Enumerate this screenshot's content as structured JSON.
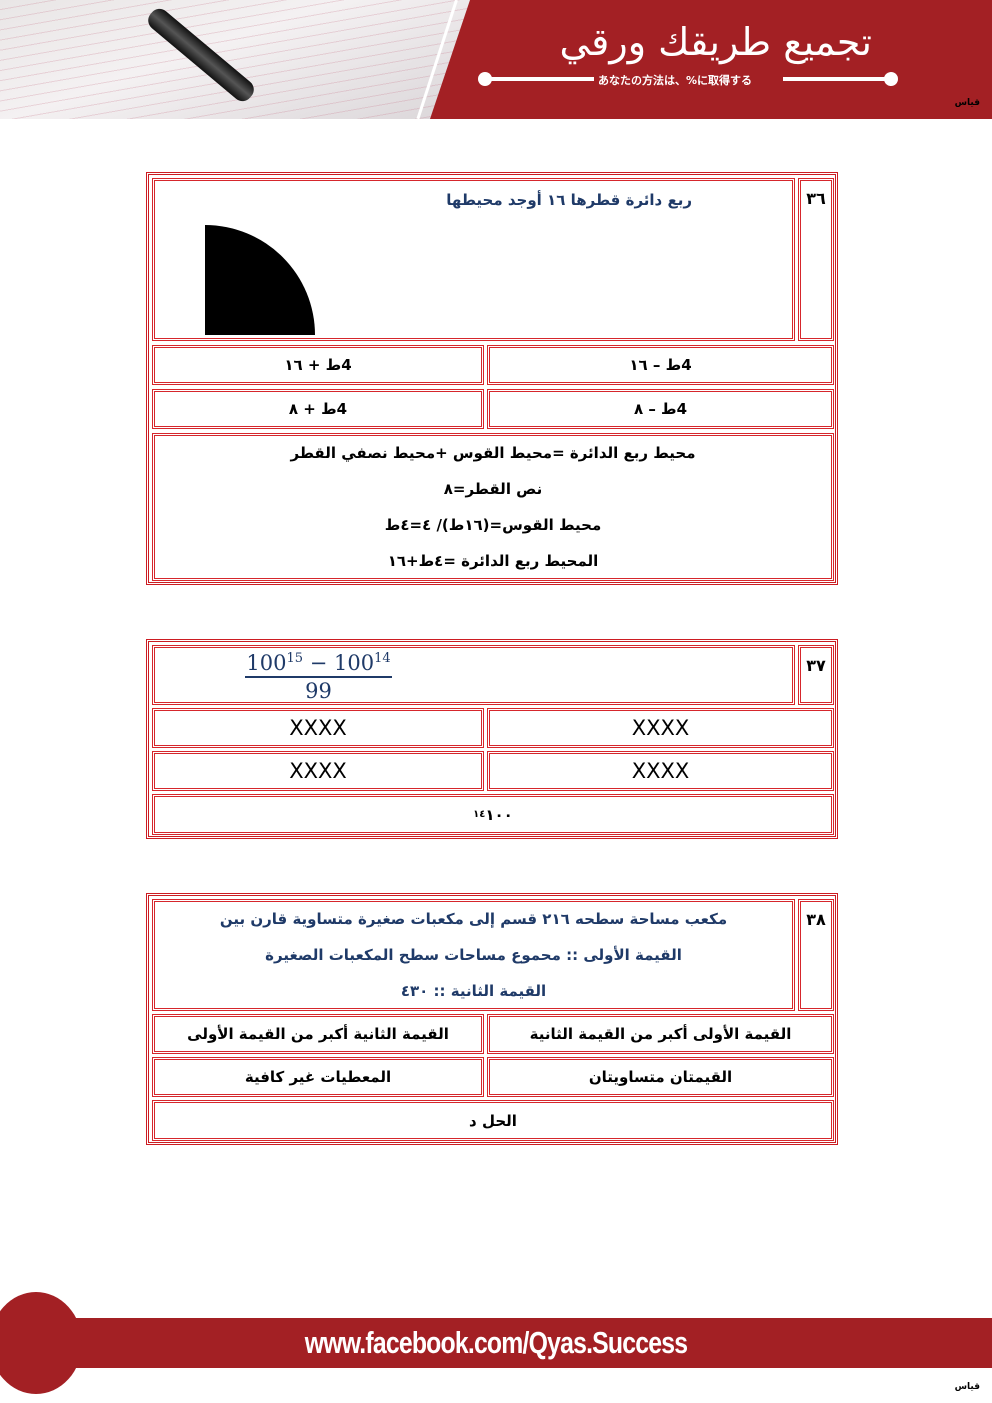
{
  "header": {
    "title": "تجميع طريقك ورقي",
    "subtitle": "あなたの方法は、%に取得する",
    "logo_text": "قياس"
  },
  "questions": [
    {
      "number": "٣٦",
      "text": "ربع دائرة قطرها ١٦ أوجد محيطها",
      "figure": "quarter-circle",
      "options": [
        "4ط – ١٦",
        "4ط + ١٦",
        "4ط – ٨",
        "4ط + ٨"
      ],
      "solution": [
        "محيط ربع الدائرة =محيط القوس +محيط نصفي القطر",
        "نص القطر=٨",
        "محيط القوس=(١٦ط)/ ٤=٤ط",
        "المحيط ربع الدائرة =٤ط+١٦"
      ]
    },
    {
      "number": "٣٧",
      "math": {
        "base1": "100",
        "exp1": "15",
        "op": "−",
        "base2": "100",
        "exp2": "14",
        "den": "99"
      },
      "options": [
        "XXXX",
        "XXXX",
        "XXXX",
        "XXXX"
      ],
      "answer": {
        "base": "١٠٠",
        "exp": "١٤"
      }
    },
    {
      "number": "٣٨",
      "text_lines": [
        "مكعب مساحة سطحه ٢١٦ قسم إلى مكعبات صغيرة متساوية قارن بين",
        "القيمة الأولى :: محموع مساحات سطح المكعبات الصغيرة",
        "القيمة الثانية :: ٤٣٠"
      ],
      "options": [
        "القيمة الأولى أكبر من القيمة الثانية",
        "القيمة الثانية أكبر من القيمة الأولى",
        "القيمتان متساويتان",
        "المعطيات غير كافية"
      ],
      "answer": "الحل د"
    }
  ],
  "footer": {
    "url": "www.facebook.com/Qyas.Success",
    "logo_text": "قياس"
  },
  "colors": {
    "brand_red": "#a32024",
    "border_red": "#d6262c",
    "question_blue": "#1f3a68"
  }
}
